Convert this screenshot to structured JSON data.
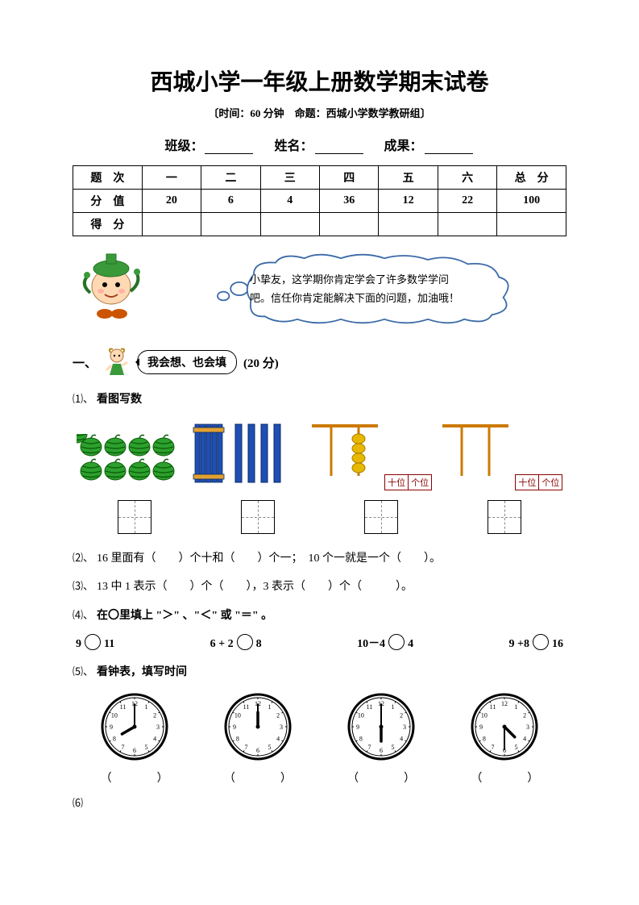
{
  "title": "西城小学一年级上册数学期末试卷",
  "subtitle": "〔时间：60 分钟　命题：西城小学数学教研组〕",
  "info": {
    "class_label": "班级：",
    "name_label": "姓名：",
    "score_label": "成果："
  },
  "score_table": {
    "headers": [
      "题　次",
      "一",
      "二",
      "三",
      "四",
      "五",
      "六",
      "总　分"
    ],
    "row_label_1": "分　值",
    "values": [
      "20",
      "6",
      "4",
      "36",
      "12",
      "22",
      "100"
    ],
    "row_label_2": "得　分"
  },
  "cloud_text_1": "小挚友，这学期你肯定学会了许多数学学问",
  "cloud_text_2": "吧。信任你肯定能解决下面的问题，加油哦！",
  "section1": {
    "num": "一、",
    "bubble": "我会想、也会填",
    "points": "(20 分)"
  },
  "q1": {
    "label": "⑴、",
    "text": "看图写数"
  },
  "q2": {
    "label": "⑵、",
    "text": "16 里面有（　　）个十和（　　）个一；　10 个一就是一个（　　）。"
  },
  "q3": {
    "label": "⑶、",
    "text": "13 中 1 表示（　　）个（　　），3 表示（　　）个（　　　）。"
  },
  "q4": {
    "label": "⑷、",
    "text": "在〇里填上 \"＞\" 、\"＜\" 或 \"＝\" 。"
  },
  "q4_items": [
    "9",
    "11",
    "6 + 2",
    "8",
    "10－4",
    "4",
    "9 +8",
    "16"
  ],
  "q5": {
    "label": "⑸、",
    "text": "看钟表，填写时间"
  },
  "q6_label": "⑹",
  "paren": "（　　　　）",
  "clocks": [
    {
      "hour": 8,
      "minute": 0
    },
    {
      "hour": 12,
      "minute": 0
    },
    {
      "hour": 6,
      "minute": 0
    },
    {
      "hour": 4,
      "minute": 30
    }
  ],
  "abacus_labels": {
    "tens": "十位",
    "ones": "个位"
  },
  "colors": {
    "watermelon": "#2ca02c",
    "watermelon_stripe": "#0b5d0b",
    "rod_blue": "#1f4fb3",
    "rod_band": "#e0a030",
    "abacus_frame": "#cc7a00",
    "abacus_bead": "#e6b800",
    "clock_face": "#ffffff",
    "clock_stroke": "#000000",
    "cloud_stroke": "#3a6aa8",
    "boy_skin": "#ffd9b3",
    "boy_hat": "#3a9a3a"
  }
}
